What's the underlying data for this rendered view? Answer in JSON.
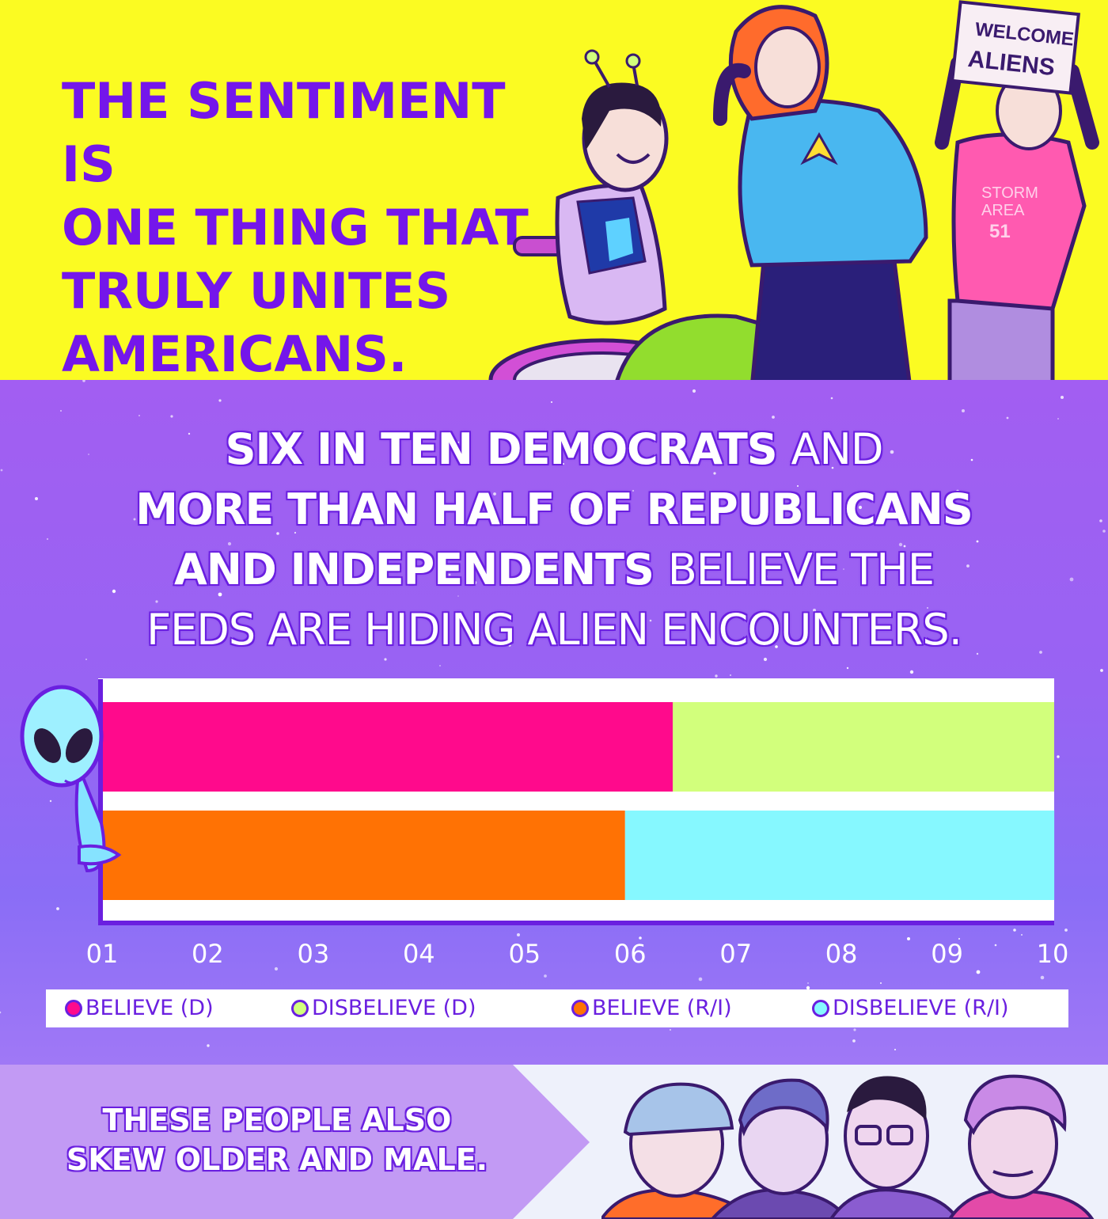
{
  "top_panel": {
    "text_lines": [
      "THE SENTIMENT IS",
      "ONE THING THAT",
      "TRULY UNITES",
      "AMERICANS."
    ],
    "sign_lines": [
      "WELCOME",
      "ALIENS"
    ],
    "shirt_lines": [
      "STORM",
      "AREA",
      "51"
    ]
  },
  "headline": {
    "line1_bold": "SIX IN TEN DEMOCRATS",
    "line1_light": "AND",
    "line2_bold": "MORE THAN HALF OF REPUBLICANS",
    "line3_bold": "AND INDEPENDENTS",
    "line3_light": "BELIEVE THE",
    "line4_light": "FEDS ARE HIDING ALIEN ENCOUNTERS."
  },
  "chart_data": {
    "type": "bar",
    "orientation": "horizontal",
    "stacked": true,
    "x_ticks": [
      "01",
      "02",
      "03",
      "04",
      "05",
      "06",
      "07",
      "08",
      "09",
      "10"
    ],
    "xlim": [
      1,
      10
    ],
    "rows": [
      {
        "segments": [
          {
            "series": "BELIEVE (D)",
            "value": 6.0
          },
          {
            "series": "DISBELIEVE (D)",
            "value": 4.0
          }
        ]
      },
      {
        "segments": [
          {
            "series": "BELIEVE (R/I)",
            "value": 5.5
          },
          {
            "series": "DISBELIEVE (R/I)",
            "value": 4.5
          }
        ]
      }
    ],
    "legend": [
      {
        "label": "BELIEVE (D)",
        "color": "#ff0a8c"
      },
      {
        "label": "DISBELIEVE (D)",
        "color": "#d2ff7c"
      },
      {
        "label": "BELIEVE (R/I)",
        "color": "#ff7204"
      },
      {
        "label": "DISBELIEVE (R/I)",
        "color": "#86f8ff"
      }
    ],
    "legend_placement": "bottom",
    "grid": false
  },
  "bottom_panel": {
    "text_lines": [
      "THESE PEOPLE ALSO",
      "SKEW OLDER AND MALE."
    ]
  },
  "colors": {
    "yellow": "#fbfb22",
    "purple_text": "#7416ea",
    "outline": "#6a1fe0",
    "believe_d": "#ff0a8c",
    "disbelieve_d": "#d2ff7c",
    "believe_ri": "#ff7204",
    "disbelieve_ri": "#86f8ff"
  }
}
